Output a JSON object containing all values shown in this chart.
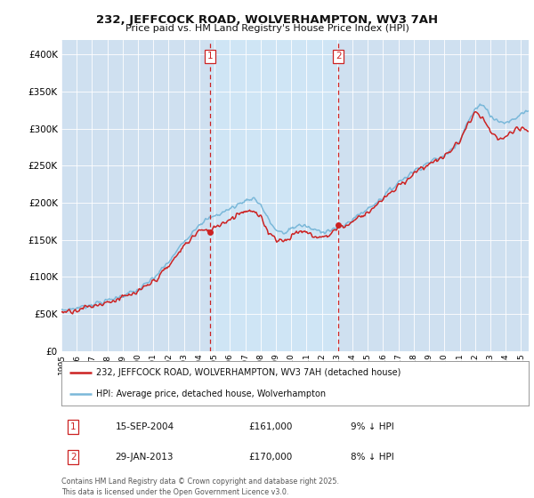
{
  "title": "232, JEFFCOCK ROAD, WOLVERHAMPTON, WV3 7AH",
  "subtitle": "Price paid vs. HM Land Registry's House Price Index (HPI)",
  "background_color": "#ffffff",
  "plot_bg_color": "#cfe0f0",
  "shade_color": "#ddeeff",
  "ylim": [
    0,
    420000
  ],
  "yticks": [
    0,
    50000,
    100000,
    150000,
    200000,
    250000,
    300000,
    350000,
    400000
  ],
  "ytick_labels": [
    "£0",
    "£50K",
    "£100K",
    "£150K",
    "£200K",
    "£250K",
    "£300K",
    "£350K",
    "£400K"
  ],
  "hpi_color": "#7ab8d9",
  "price_color": "#cc2222",
  "vline_color": "#cc2222",
  "sale1_date_num": 2004.71,
  "sale1_price": 161000,
  "sale1_label": "1",
  "sale2_date_num": 2013.08,
  "sale2_price": 170000,
  "sale2_label": "2",
  "legend_line1": "232, JEFFCOCK ROAD, WOLVERHAMPTON, WV3 7AH (detached house)",
  "legend_line2": "HPI: Average price, detached house, Wolverhampton",
  "table_row1": [
    "1",
    "15-SEP-2004",
    "£161,000",
    "9% ↓ HPI"
  ],
  "table_row2": [
    "2",
    "29-JAN-2013",
    "£170,000",
    "8% ↓ HPI"
  ],
  "footer": "Contains HM Land Registry data © Crown copyright and database right 2025.\nThis data is licensed under the Open Government Licence v3.0.",
  "xmin": 1995,
  "xmax": 2025.5
}
